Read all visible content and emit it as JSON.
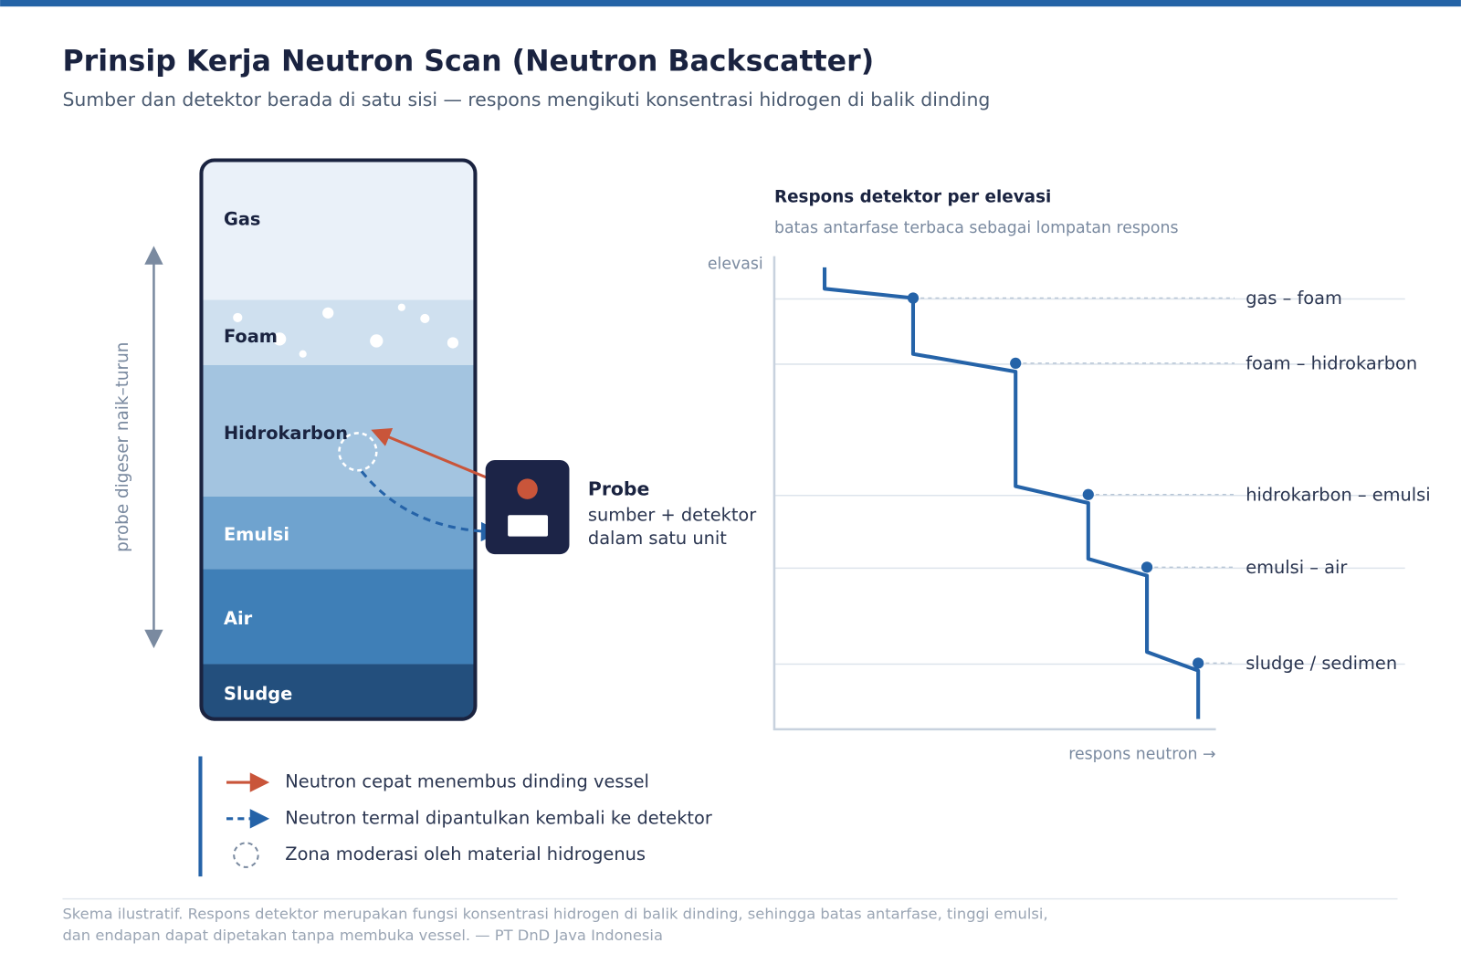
{
  "header": {
    "title": "Prinsip Kerja Neutron Scan (Neutron Backscatter)",
    "subtitle": "Sumber dan detektor berada di satu sisi — respons mengikuti konsentrasi hidrogen di balik dinding"
  },
  "vessel": {
    "axis_label": "probe digeser naik–turun",
    "layers": [
      "Gas",
      "Foam",
      "Hidrokarbon",
      "Emulsi",
      "Air",
      "Sludge"
    ]
  },
  "probe": {
    "title": "Probe",
    "lines": [
      "sumber + detektor",
      "dalam satu unit"
    ]
  },
  "response_chart": {
    "title": "Respons detektor per elevasi",
    "subtitle": "batas antarfase terbaca sebagai lompatan respons",
    "y_label": "elevasi",
    "x_label": "respons neutron →",
    "interfaces": [
      "gas – foam",
      "foam – hidrokarbon",
      "hidrokarbon – emulsi",
      "emulsi – air",
      "sludge / sedimen"
    ]
  },
  "legend": {
    "items": [
      "Neutron cepat menembus dinding vessel",
      "Neutron termal dipantulkan kembali ke detektor",
      "Zona moderasi oleh material hidrogenus"
    ]
  },
  "footer": {
    "lines": [
      "Skema ilustratif. Respons detektor merupakan fungsi konsentrasi hidrogen di balik dinding, sehingga batas antarfase, tinggi emulsi,",
      "dan endapan dapat dipetakan tanpa membuka vessel. — PT DnD Java Indonesia"
    ]
  }
}
